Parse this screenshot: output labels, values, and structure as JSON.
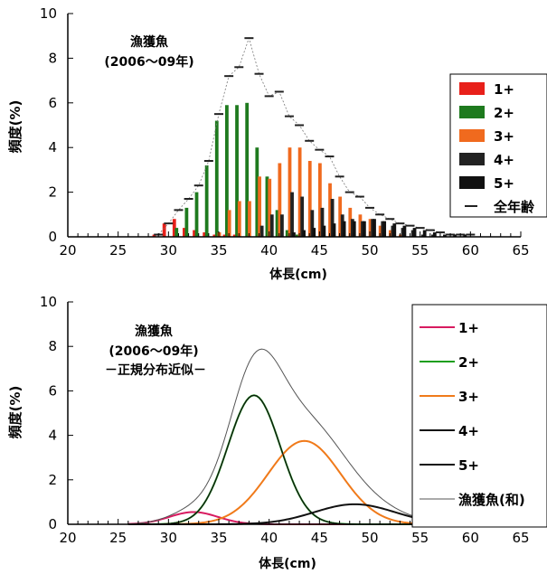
{
  "chart_data": [
    {
      "type": "bar",
      "title": "漁獲魚",
      "subtitle": "(2006～09年)",
      "xlabel": "体長(cm)",
      "ylabel": "頻度(%)",
      "xlim": [
        20,
        65
      ],
      "ylim": [
        0,
        10
      ],
      "xticks": [
        "20",
        "25",
        "30",
        "35",
        "40",
        "45",
        "50",
        "55",
        "60",
        "65"
      ],
      "yticks": [
        "0",
        "2",
        "4",
        "6",
        "8",
        "10"
      ],
      "legend_position": "right",
      "x": [
        29,
        30,
        31,
        32,
        33,
        34,
        35,
        36,
        37,
        38,
        39,
        40,
        41,
        42,
        43,
        44,
        45,
        46,
        47,
        48,
        49,
        50,
        51,
        52,
        53,
        54,
        55,
        56,
        57,
        58,
        59,
        60
      ],
      "series": [
        {
          "name": "1+",
          "color": "#e8201a",
          "marker": "bar",
          "values": [
            0.1,
            0.6,
            0.8,
            0.4,
            0.3,
            0.2,
            0.1,
            0.1,
            0.1,
            0,
            0,
            0,
            0,
            0,
            0,
            0,
            0,
            0,
            0,
            0,
            0,
            0,
            0,
            0,
            0,
            0,
            0,
            0,
            0,
            0,
            0,
            0
          ]
        },
        {
          "name": "2+",
          "color": "#1e7a1e",
          "marker": "bar",
          "values": [
            0,
            0,
            0.4,
            1.3,
            2.0,
            3.2,
            5.2,
            5.9,
            5.9,
            6.0,
            4.0,
            2.7,
            1.2,
            0.3,
            0.1,
            0,
            0,
            0,
            0,
            0,
            0,
            0,
            0,
            0,
            0,
            0,
            0,
            0,
            0,
            0,
            0,
            0
          ]
        },
        {
          "name": "3+",
          "color": "#f06a1e",
          "marker": "bar",
          "values": [
            0,
            0,
            0,
            0,
            0,
            0,
            0.2,
            1.2,
            1.6,
            1.6,
            2.7,
            2.6,
            3.3,
            4.0,
            4.0,
            3.4,
            3.3,
            2.4,
            1.8,
            1.3,
            1.0,
            0.8,
            0.5,
            0.3,
            0.1,
            0,
            0,
            0,
            0,
            0,
            0,
            0
          ]
        },
        {
          "name": "4+",
          "color": "#222222",
          "marker": "bar",
          "values": [
            0,
            0,
            0,
            0,
            0,
            0,
            0,
            0,
            0,
            0,
            0.5,
            1.0,
            1.0,
            2.0,
            1.8,
            1.2,
            1.3,
            1.7,
            1.0,
            0.8,
            0.7,
            0.8,
            0.7,
            0.5,
            0.4,
            0.3,
            0.1,
            0.1,
            0,
            0,
            0,
            0
          ]
        },
        {
          "name": "5+",
          "color": "#111111",
          "marker": "bar",
          "values": [
            0,
            0,
            0,
            0,
            0,
            0,
            0,
            0,
            0,
            0,
            0,
            0,
            0,
            0.2,
            0.3,
            0.4,
            0.5,
            0.6,
            0.7,
            0.7,
            0.7,
            0.8,
            0.7,
            0.6,
            0.5,
            0.4,
            0.3,
            0.2,
            0.1,
            0.1,
            0.1,
            0
          ]
        },
        {
          "name": "全年齢",
          "color": "#333333",
          "marker": "dash",
          "values": [
            0.1,
            0.6,
            1.2,
            1.7,
            2.3,
            3.4,
            5.5,
            7.2,
            7.6,
            8.9,
            7.3,
            6.3,
            6.5,
            5.4,
            5.0,
            4.3,
            3.9,
            3.6,
            2.7,
            2.0,
            1.8,
            1.3,
            1.0,
            0.8,
            0.6,
            0.5,
            0.4,
            0.3,
            0.2,
            0.1,
            0.1,
            0.1
          ]
        }
      ]
    },
    {
      "type": "line",
      "title": "漁獲魚",
      "subtitle": "(2006～09年)",
      "note": "－正規分布近似－",
      "xlabel": "体長(cm)",
      "ylabel": "頻度(%)",
      "xlim": [
        20,
        65
      ],
      "ylim": [
        0,
        10
      ],
      "xticks": [
        "20",
        "25",
        "30",
        "35",
        "40",
        "45",
        "50",
        "55",
        "60",
        "65"
      ],
      "yticks": [
        "0",
        "2",
        "4",
        "6",
        "8",
        "10"
      ],
      "legend_position": "right",
      "series": [
        {
          "name": "1+",
          "color": "#d81b60",
          "mean": 32.5,
          "sd": 2.4,
          "peak": 0.55
        },
        {
          "name": "2+",
          "color": "#1e9e1e",
          "mean": 38.5,
          "sd": 2.6,
          "peak": 5.8
        },
        {
          "name": "3+",
          "color": "#f07a1a",
          "mean": 43.5,
          "sd": 3.6,
          "peak": 3.75
        },
        {
          "name": "4+",
          "color": "#111111",
          "mean": 38.5,
          "sd": 2.6,
          "peak": 5.8
        },
        {
          "name": "5+",
          "color": "#111111",
          "mean": 48.5,
          "sd": 4.0,
          "peak": 0.9
        },
        {
          "name": "漁獲魚(和)",
          "color": "#555555",
          "mean": 0,
          "sd": 0,
          "peak": 7.85
        }
      ]
    }
  ]
}
